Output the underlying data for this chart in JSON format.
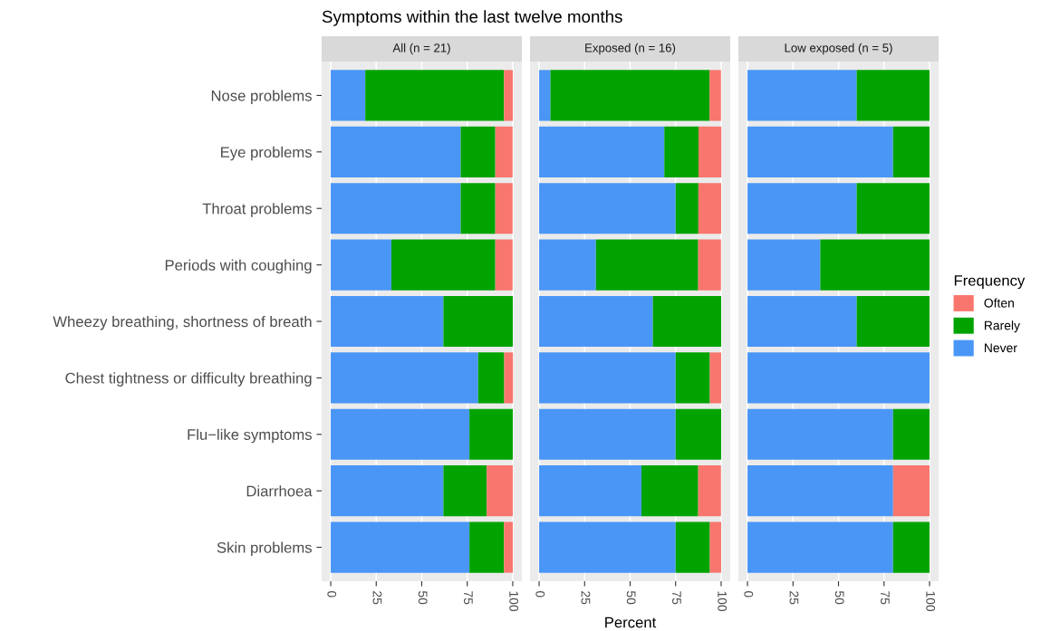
{
  "chart_data": [
    {
      "type": "bar",
      "orientation": "horizontal",
      "stacked": true,
      "title": "Symptoms within the last twelve months",
      "subtitle": "All (n = 21)",
      "legend_title": "Frequency",
      "legend": "right",
      "categories": [
        "Nose problems",
        "Eye problems",
        "Throat problems",
        "Periods with coughing",
        "Wheezy breathing, shortness of breath",
        "Chest tightness or difficulty breathing",
        "Flu−like symptoms",
        "Diarrhoea",
        "Skin problems"
      ],
      "series": [
        {
          "name": "Never",
          "color": "#4a96f7",
          "values": [
            19.0,
            71.4,
            71.4,
            33.3,
            61.9,
            81.0,
            76.2,
            61.9,
            76.2
          ]
        },
        {
          "name": "Rarely",
          "color": "#00a300",
          "values": [
            76.2,
            19.0,
            19.0,
            57.1,
            38.1,
            14.3,
            23.8,
            23.8,
            19.0
          ]
        },
        {
          "name": "Often",
          "color": "#f8766d",
          "values": [
            4.8,
            9.5,
            9.5,
            9.5,
            0,
            4.8,
            0,
            14.3,
            4.8
          ]
        }
      ],
      "xlim": [
        -5,
        105
      ],
      "xticks": [
        0,
        25,
        50,
        75,
        100
      ],
      "grid": "x"
    },
    {
      "type": "bar",
      "orientation": "horizontal",
      "stacked": true,
      "subtitle": "Exposed (n = 16)",
      "xlabel": "Percent",
      "series": [
        {
          "color": "#4a96f7",
          "values": [
            6.2,
            68.8,
            75,
            31.2,
            62.5,
            75,
            75,
            56.2,
            75
          ]
        },
        {
          "color": "#00a300",
          "values": [
            87.5,
            18.8,
            12.5,
            56.2,
            37.5,
            18.8,
            25,
            31.2,
            18.8
          ]
        },
        {
          "color": "#f8766d",
          "values": [
            6.2,
            12.5,
            12.5,
            12.5,
            0,
            6.2,
            0,
            12.5,
            6.2
          ]
        }
      ],
      "xlim": [
        -5,
        105
      ],
      "xticks": [
        0,
        25,
        50,
        75,
        100
      ],
      "grid": "x",
      "tick_labels": "x"
    },
    {
      "type": "bar",
      "orientation": "horizontal",
      "stacked": true,
      "subtitle": "Low exposed (n = 5)",
      "series": [
        {
          "color": "#4a96f7",
          "values": [
            60,
            80,
            60,
            40,
            60,
            100,
            80,
            80,
            80
          ]
        },
        {
          "color": "#00a300",
          "values": [
            40,
            20,
            40,
            60,
            40,
            0,
            20,
            0,
            20
          ]
        },
        {
          "color": "#f8766d",
          "values": [
            0,
            0,
            0,
            0,
            0,
            0,
            0,
            20,
            0
          ]
        }
      ],
      "xlim": [
        -5,
        105
      ],
      "xticks": [
        0,
        25,
        50,
        75,
        100
      ],
      "grid": "x",
      "tick_labels": "x"
    }
  ]
}
